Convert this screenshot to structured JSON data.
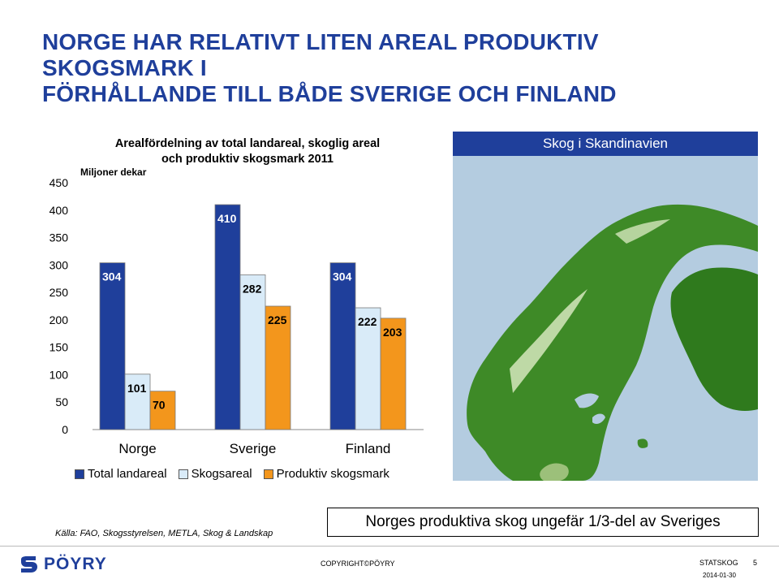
{
  "slide": {
    "title_line1": "NORGE HAR RELATIVT LITEN AREAL PRODUKTIV SKOGSMARK I",
    "title_line2": "FÖRHÅLLANDE TILL BÅDE SVERIGE OCH FINLAND"
  },
  "chart_data": {
    "type": "bar",
    "title_line1": "Arealfördelning av total landareal, skoglig areal",
    "title_line2": "och produktiv skogsmark 2011",
    "unit_label": "Miljoner dekar",
    "categories": [
      "Norge",
      "Sverige",
      "Finland"
    ],
    "series": [
      {
        "name": "Total landareal",
        "values": [
          304,
          410,
          304
        ],
        "color": "#1f3f9b"
      },
      {
        "name": "Skogsareal",
        "values": [
          101,
          282,
          222
        ],
        "color": "#d9ebf8"
      },
      {
        "name": "Produktiv skogsmark",
        "values": [
          70,
          225,
          203
        ],
        "color": "#f3961c"
      }
    ],
    "ylim": [
      0,
      450
    ],
    "yticks": [
      0,
      50,
      100,
      150,
      200,
      250,
      300,
      350,
      400,
      450
    ],
    "grid": false,
    "legend_position": "bottom"
  },
  "map": {
    "header": "Skog i Skandinavien",
    "colors": {
      "water": "#b4cce0",
      "forest": "#2f7a1d",
      "open_land": "#d5e6bd",
      "header": "#1f3f9b"
    }
  },
  "footer": {
    "source": "Källa: FAO, Skogsstyrelsen, METLA, Skog & Landskap",
    "highlight": "Norges produktiva skog ungefär 1/3-del av Sveriges",
    "logo_text": "PÖYRY",
    "copyright": "COPYRIGHT©PÖYRY",
    "org": "STATSKOG",
    "date": "2014-01-30",
    "page_number": "5"
  }
}
